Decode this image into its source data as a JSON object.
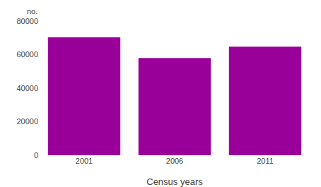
{
  "chart_data": {
    "type": "bar",
    "categories": [
      "2001",
      "2006",
      "2011"
    ],
    "values": [
      70390,
      58000,
      64800
    ],
    "color": "#990099",
    "xlabel": "Census years",
    "ylabel": "no.",
    "ylim": [
      0,
      80000
    ],
    "yticks": [
      0,
      20000,
      40000,
      60000,
      80000
    ],
    "grid": false
  }
}
